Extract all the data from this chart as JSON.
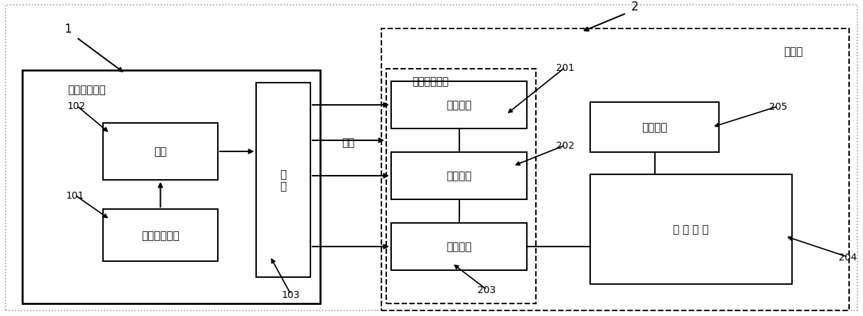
{
  "bg_color": "#ffffff",
  "fig_width": 12.4,
  "fig_height": 4.56,
  "label1": "1",
  "label2": "2",
  "box1_label": "磁力发生装置",
  "box2_label": "磁力识别装置",
  "box3_label": "监护仪",
  "power_label": "电源",
  "coil_label": "线\n圈",
  "ctrl_label": "电源控制芯片",
  "detect_label": "检测单元",
  "collect_label": "采集单元",
  "convert_label": "转化单元",
  "switch_label": "切换单元",
  "match_label": "匹 配 单 元",
  "field_label": "磁场",
  "ref101": "101",
  "ref102": "102",
  "ref103": "103",
  "ref201": "201",
  "ref202": "202",
  "ref203": "203",
  "ref204": "204",
  "ref205": "205"
}
